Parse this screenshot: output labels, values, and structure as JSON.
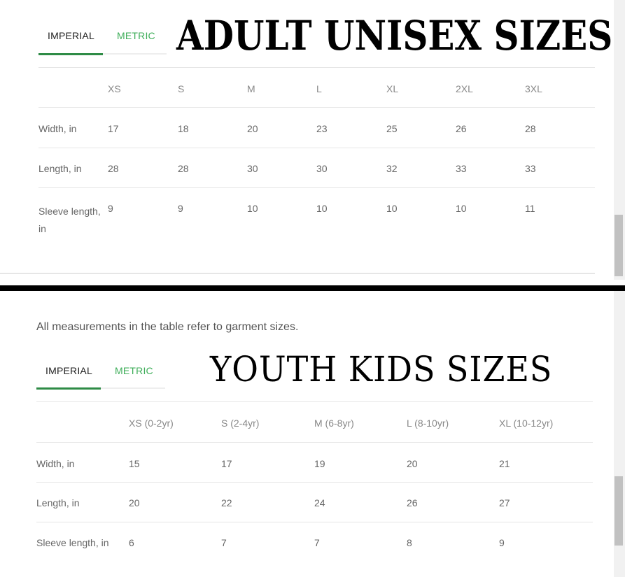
{
  "adult": {
    "tabs": [
      {
        "label": "IMPERIAL",
        "active": true
      },
      {
        "label": "METRIC",
        "active": false
      }
    ],
    "title": "ADULT UNISEX SIZES",
    "columns": [
      "XS",
      "S",
      "M",
      "L",
      "XL",
      "2XL",
      "3XL"
    ],
    "rows": [
      {
        "label": "Width, in",
        "values": [
          "17",
          "18",
          "20",
          "23",
          "25",
          "26",
          "28"
        ]
      },
      {
        "label": "Length, in",
        "values": [
          "28",
          "28",
          "30",
          "30",
          "32",
          "33",
          "33"
        ]
      },
      {
        "label": "Sleeve length, in",
        "values": [
          "9",
          "9",
          "10",
          "10",
          "10",
          "10",
          "11"
        ]
      }
    ]
  },
  "youth": {
    "note": "All measurements in the table refer to garment sizes.",
    "tabs": [
      {
        "label": "IMPERIAL",
        "active": true
      },
      {
        "label": "METRIC",
        "active": false
      }
    ],
    "title": "YOUTH KIDS SIZES",
    "columns": [
      "XS (0-2yr)",
      "S (2-4yr)",
      "M (6-8yr)",
      "L (8-10yr)",
      "XL (10-12yr)"
    ],
    "rows": [
      {
        "label": "Width, in",
        "values": [
          "15",
          "17",
          "19",
          "20",
          "21"
        ]
      },
      {
        "label": "Length, in",
        "values": [
          "20",
          "22",
          "24",
          "26",
          "27"
        ]
      },
      {
        "label": "Sleeve length, in",
        "values": [
          "6",
          "7",
          "7",
          "8",
          "9"
        ]
      }
    ]
  },
  "colors": {
    "accent": "#2e8b46",
    "metric_tab": "#3fae5a",
    "divider": "#000000"
  }
}
